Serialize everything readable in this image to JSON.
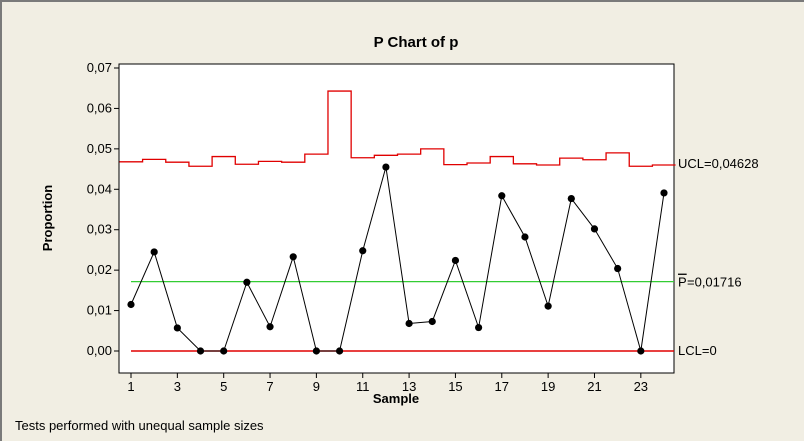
{
  "footnote": "Tests performed with unequal sample sizes",
  "chart_data": {
    "type": "line",
    "title": "P Chart of p",
    "xlabel": "Sample",
    "ylabel": "Proportion",
    "xlim": [
      1,
      24
    ],
    "ylim": [
      0,
      0.07
    ],
    "yticks": [
      "0,00",
      "0,01",
      "0,02",
      "0,03",
      "0,04",
      "0,05",
      "0,06",
      "0,07"
    ],
    "xticks": [
      "1",
      "3",
      "5",
      "7",
      "9",
      "11",
      "13",
      "15",
      "17",
      "19",
      "21",
      "23"
    ],
    "x": [
      1,
      2,
      3,
      4,
      5,
      6,
      7,
      8,
      9,
      10,
      11,
      12,
      13,
      14,
      15,
      16,
      17,
      18,
      19,
      20,
      21,
      22,
      23,
      24
    ],
    "series": [
      {
        "values": [
          0.0115,
          0.0245,
          0.0057,
          0.0,
          0.0,
          0.017,
          0.006,
          0.0233,
          0.0,
          0.0,
          0.0248,
          0.0455,
          0.0068,
          0.0073,
          0.0224,
          0.0058,
          0.0384,
          0.0282,
          0.0111,
          0.0377,
          0.0302,
          0.0204,
          0.0,
          0.0391
        ],
        "color": "#000000"
      },
      {
        "values": [
          0.0468,
          0.0474,
          0.0467,
          0.0457,
          0.0481,
          0.0462,
          0.0469,
          0.0467,
          0.0487,
          0.0643,
          0.0478,
          0.0484,
          0.0487,
          0.05,
          0.0461,
          0.0465,
          0.0481,
          0.0463,
          0.046,
          0.0477,
          0.0473,
          0.049,
          0.0457,
          0.046
        ],
        "color": "#e00000"
      }
    ],
    "center_line": 0.01716,
    "lcl": 0,
    "labels": {
      "ucl": "UCL=0,04628",
      "center": "=0,01716",
      "center_symbol": "P",
      "lcl": "LCL=0"
    },
    "colors": {
      "center": "#33cc33",
      "limits": "#e00000",
      "data": "#000000",
      "plot_bg": "#ffffff"
    },
    "grid": false,
    "legend": "none"
  }
}
